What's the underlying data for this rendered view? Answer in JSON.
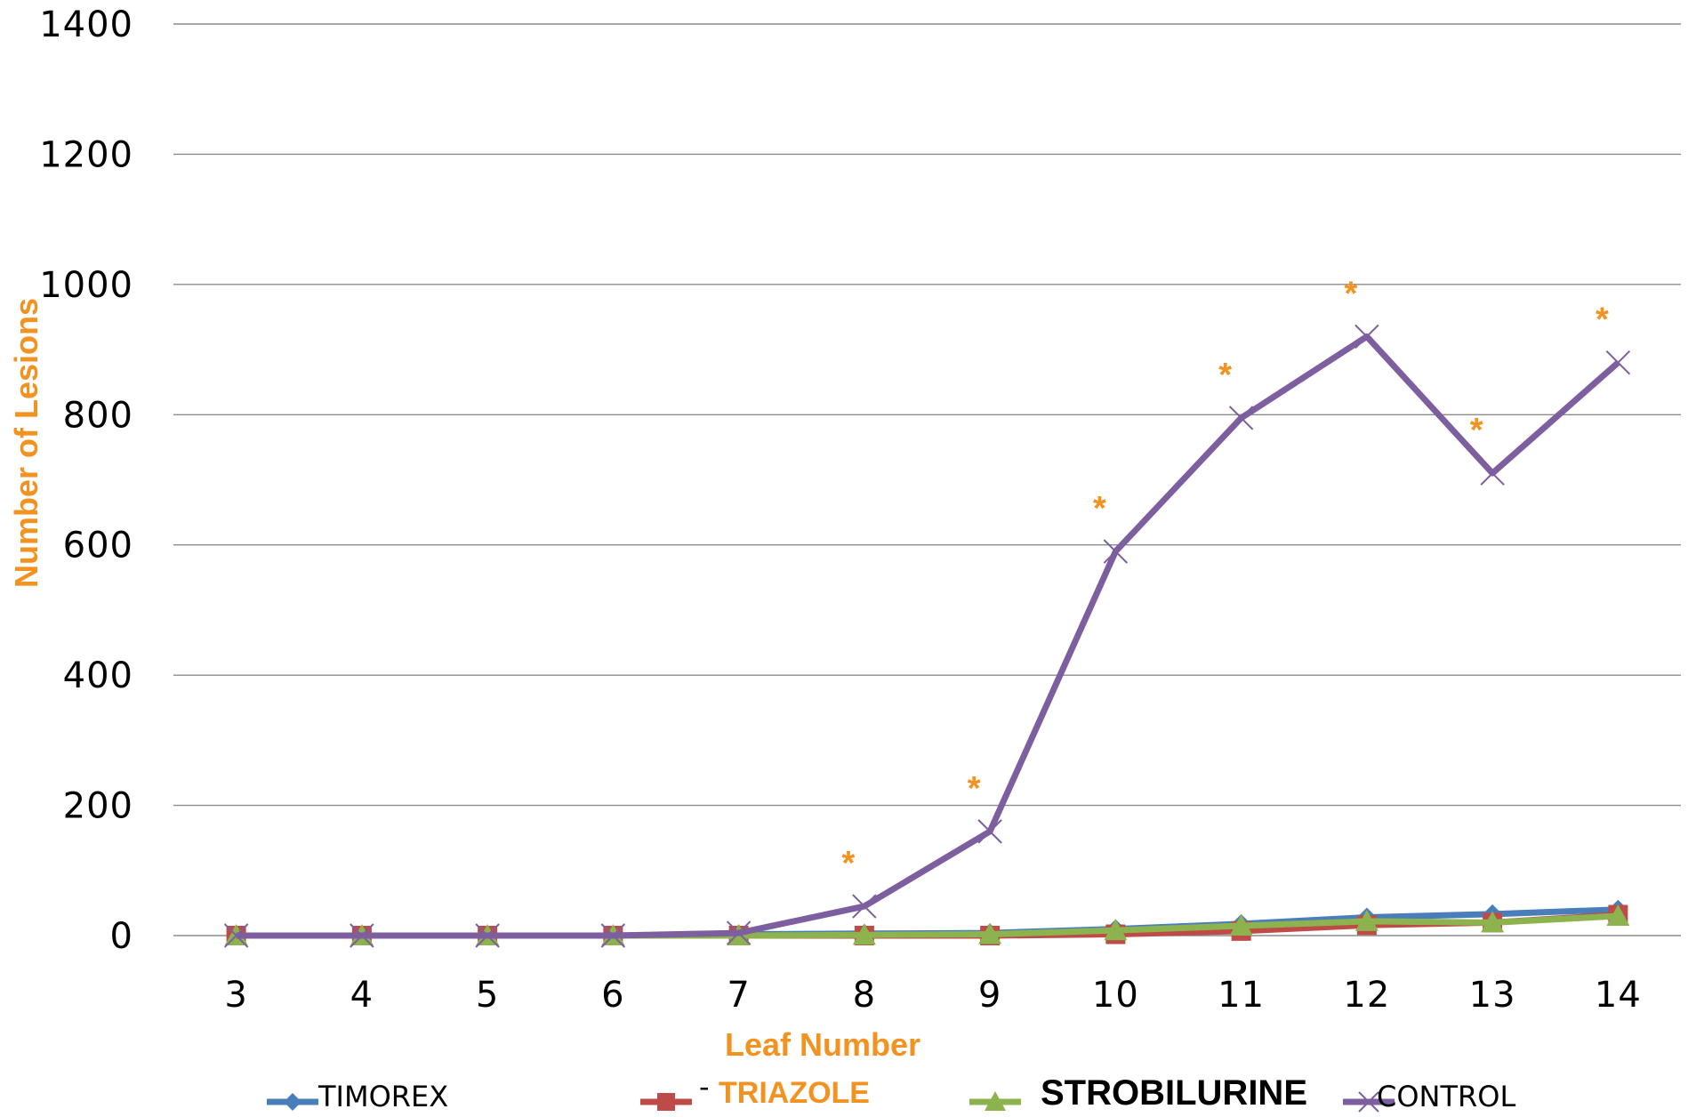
{
  "chart_data": {
    "type": "line",
    "title": "",
    "xlabel": "Leaf Number",
    "ylabel": "Number of Lesions",
    "categories": [
      "3",
      "4",
      "5",
      "6",
      "7",
      "8",
      "9",
      "10",
      "11",
      "12",
      "13",
      "14"
    ],
    "ylim": [
      0,
      1400
    ],
    "yticks": [
      "0",
      "200",
      "400",
      "600",
      "800",
      "1000",
      "1200",
      "1400"
    ],
    "grid": true,
    "legend_position": "bottom",
    "series": [
      {
        "name": "TIMOREX",
        "color": "#4a7ebb",
        "marker": "diamond",
        "values": [
          0,
          0,
          0,
          0,
          2,
          3,
          4,
          10,
          18,
          28,
          33,
          40
        ]
      },
      {
        "name": "TRIAZOLE",
        "color": "#be4b48",
        "marker": "square",
        "values": [
          0,
          0,
          0,
          0,
          0,
          0,
          0,
          2,
          7,
          16,
          20,
          32
        ]
      },
      {
        "name": "STROBILURINE",
        "color": "#8db34e",
        "marker": "triangle",
        "values": [
          0,
          0,
          0,
          0,
          0,
          1,
          2,
          8,
          15,
          22,
          20,
          30
        ]
      },
      {
        "name": "CONTROL",
        "color": "#7d5fa0",
        "marker": "x",
        "values": [
          0,
          0,
          0,
          0,
          4,
          45,
          160,
          590,
          795,
          920,
          710,
          880
        ]
      }
    ],
    "annotations": [
      {
        "text": "*",
        "category": "8"
      },
      {
        "text": "*",
        "category": "9"
      },
      {
        "text": "*",
        "category": "10"
      },
      {
        "text": "*",
        "category": "11"
      },
      {
        "text": "*",
        "category": "12"
      },
      {
        "text": "*",
        "category": "13"
      },
      {
        "text": "*",
        "category": "14"
      }
    ],
    "legend_dash": "-",
    "colors": {
      "axis_title": "#f29220",
      "annotation": "#f29220",
      "grid": "#8c8c8c"
    }
  }
}
